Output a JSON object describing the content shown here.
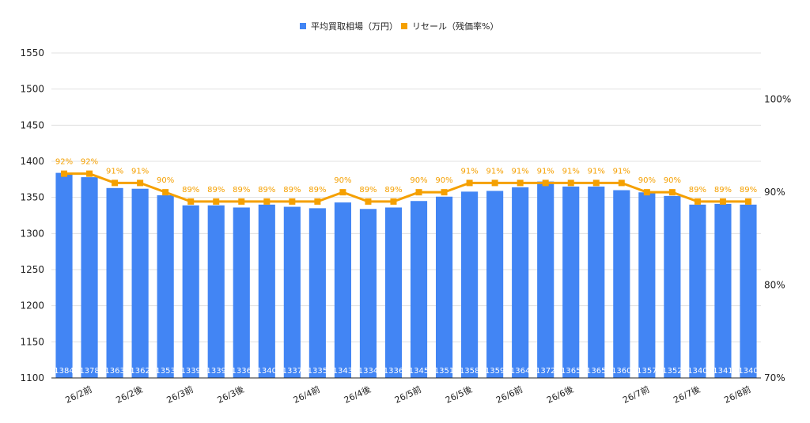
{
  "chart_data": {
    "type": "bar",
    "categories": [
      "",
      "26/2前",
      "",
      "26/2後",
      "",
      "26/3前",
      "",
      "26/3後",
      "",
      "",
      "26/4前",
      "",
      "26/4後",
      "",
      "26/5前",
      "",
      "26/5後",
      "",
      "26/6前",
      "",
      "26/6後",
      "",
      "",
      "26/7前",
      "",
      "26/7後",
      "",
      "26/8前"
    ],
    "series": [
      {
        "name": "平均買取相場（万円）",
        "type": "bar",
        "axis": "left",
        "color": "#4285f4",
        "values": [
          1384,
          1378,
          1363,
          1362,
          1353,
          1339,
          1339,
          1336,
          1340,
          1337,
          1335,
          1343,
          1334,
          1336,
          1345,
          1351,
          1358,
          1359,
          1364,
          1372,
          1365,
          1365,
          1360,
          1357,
          1352,
          1340,
          1341,
          1340
        ]
      },
      {
        "name": "リセール（残価率%）",
        "type": "line",
        "axis": "right",
        "color": "#f5a000",
        "values": [
          92,
          92,
          91,
          91,
          90,
          89,
          89,
          89,
          89,
          89,
          89,
          90,
          89,
          89,
          90,
          90,
          91,
          91,
          91,
          91,
          91,
          91,
          91,
          90,
          90,
          89,
          89,
          89
        ]
      }
    ],
    "ylim": [
      1100,
      1550
    ],
    "y_ticks": [
      1100,
      1150,
      1200,
      1250,
      1300,
      1350,
      1400,
      1450,
      1500,
      1550
    ],
    "y2lim": [
      70,
      105
    ],
    "y2_ticks": [
      70,
      80,
      90,
      100
    ],
    "y2_tick_labels": [
      "70%",
      "80%",
      "90%",
      "100%"
    ],
    "legend_position": "top-center",
    "grid": true
  }
}
